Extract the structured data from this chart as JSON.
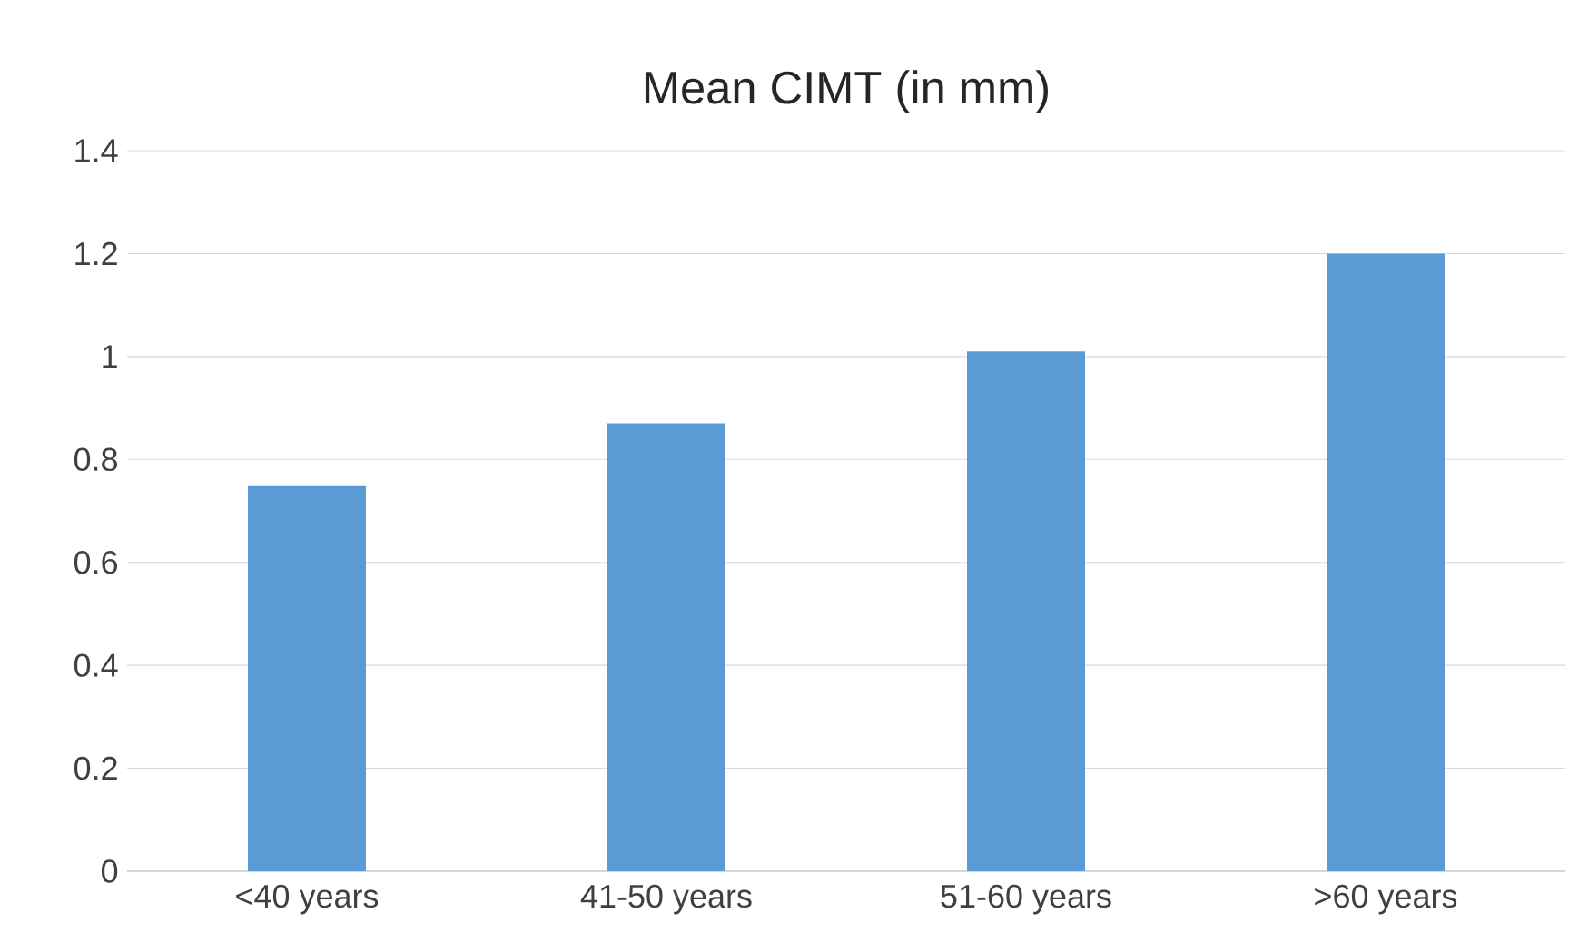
{
  "chart_data": {
    "type": "bar",
    "title": "Mean CIMT (in mm)",
    "categories": [
      "<40 years",
      "41-50 years",
      "51-60 years",
      ">60 years"
    ],
    "values": [
      0.75,
      0.87,
      1.01,
      1.2
    ],
    "color": "#5b9bd5",
    "ylim": [
      0,
      1.4
    ],
    "yticks": [
      0,
      0.2,
      0.4,
      0.6,
      0.8,
      1,
      1.2,
      1.4
    ],
    "grid": "y"
  }
}
